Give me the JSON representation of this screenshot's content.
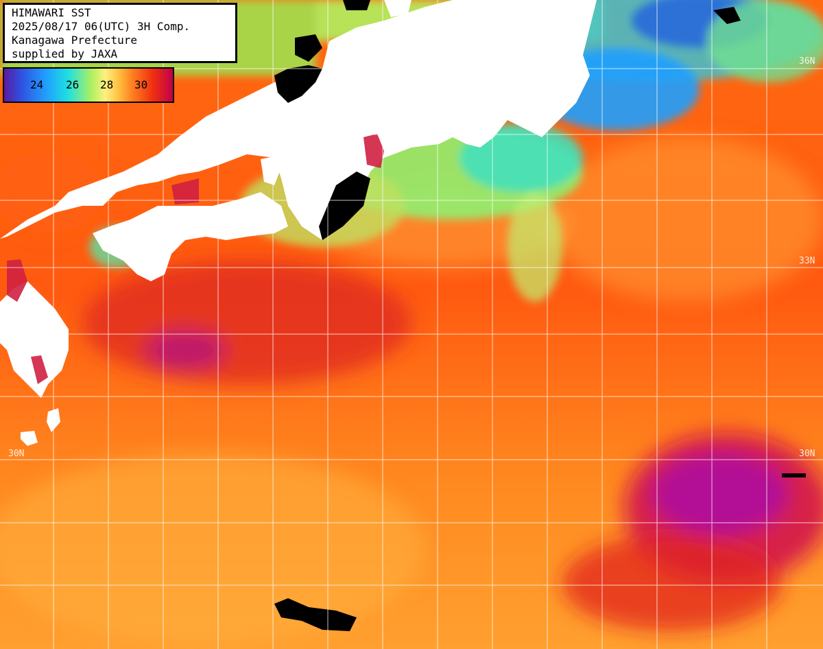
{
  "info": {
    "line1": "HIMAWARI SST",
    "line2": "2025/08/17 06(UTC) 3H Comp.",
    "line3": "Kanagawa Prefecture",
    "line4": "supplied by JAXA"
  },
  "colorbar": {
    "ticks": [
      "24",
      "26",
      "28",
      "30"
    ]
  },
  "grid_labels": {
    "lat36_right": "36N",
    "lat33_right": "33N",
    "lat30_left": "30N",
    "lat30_right": "30N"
  },
  "colors": {
    "land": "#ffffff",
    "cloud": "#000000",
    "warm_sea": "#ff7a10",
    "hot_sea": "#d81830",
    "very_hot_sea": "#c010a0",
    "cool_coast": "#90f070",
    "cold_sea": "#20a0ff"
  }
}
